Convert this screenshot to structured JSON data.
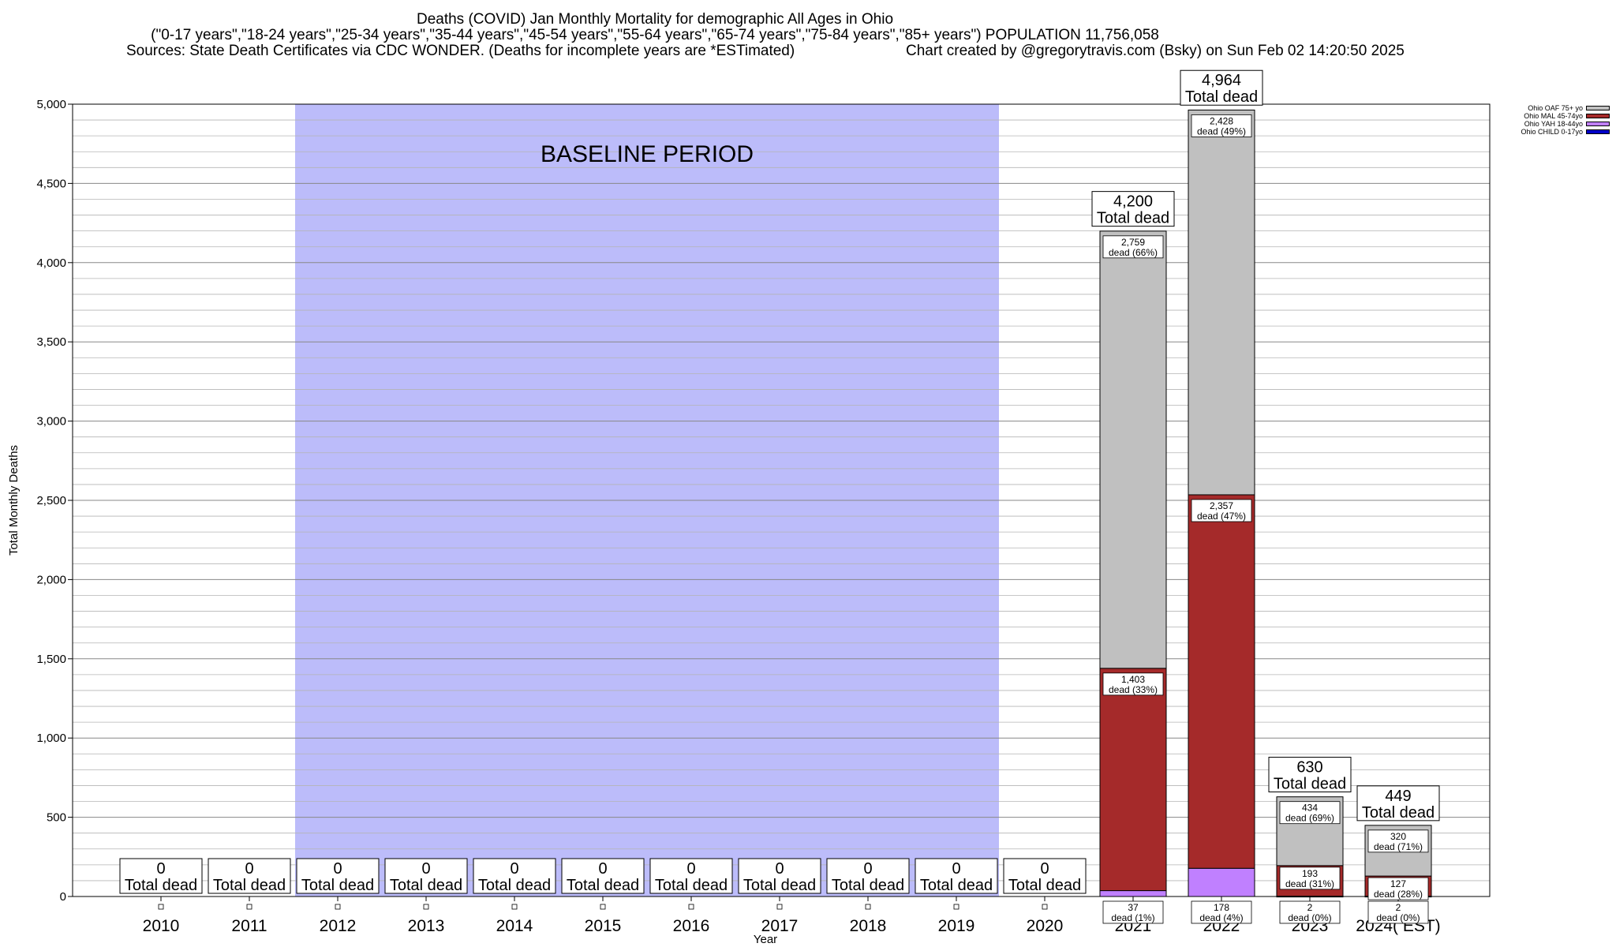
{
  "header": {
    "title_line1": "Deaths (COVID) Jan Monthly Mortality for demographic All Ages in Ohio",
    "title_line2": "(\"0-17 years\",\"18-24 years\",\"25-34 years\",\"35-44 years\",\"45-54 years\",\"55-64 years\",\"65-74 years\",\"75-84 years\",\"85+ years\") POPULATION 11,756,058",
    "sources": "Sources: State Death Certificates via CDC WONDER. (Deaths for incomplete years are *ESTimated)",
    "credit": "Chart created by @gregorytravis.com (Bsky) on Sun Feb 02 14:20:50 2025"
  },
  "chart_data": {
    "type": "bar",
    "stacked": true,
    "title": "Deaths (COVID) Jan Monthly Mortality for demographic All Ages in Ohio",
    "xlabel": "Year",
    "ylabel": "Total Monthly Deaths",
    "ylim": [
      0,
      5000
    ],
    "yticks": [
      0,
      500,
      1000,
      1500,
      2000,
      2500,
      3000,
      3500,
      4000,
      4500,
      5000
    ],
    "ytick_labels": [
      "0",
      "500",
      "1,000",
      "1,500",
      "2,000",
      "2,500",
      "3,000",
      "3,500",
      "4,000",
      "4,500",
      "5,000"
    ],
    "grid": true,
    "legend_position": "top-right",
    "categories": [
      "2010",
      "2011",
      "2012",
      "2013",
      "2014",
      "2015",
      "2016",
      "2017",
      "2018",
      "2019",
      "2020",
      "2021",
      "2022",
      "2023",
      "2024( EST)"
    ],
    "series": [
      {
        "name": "Ohio CHILD 0-17yo",
        "color": "#0000c8",
        "values": [
          0,
          0,
          0,
          0,
          0,
          0,
          0,
          0,
          0,
          0,
          0,
          0,
          0,
          0,
          0
        ]
      },
      {
        "name": "Ohio YAH 18-44yo",
        "color": "#c080ff",
        "values": [
          0,
          0,
          0,
          0,
          0,
          0,
          0,
          0,
          0,
          0,
          0,
          37,
          178,
          2,
          2
        ]
      },
      {
        "name": "Ohio MAL 45-74yo",
        "color": "#a52a2a",
        "values": [
          0,
          0,
          0,
          0,
          0,
          0,
          0,
          0,
          0,
          0,
          0,
          1403,
          2357,
          193,
          127
        ]
      },
      {
        "name": "Ohio OAF 75+ yo",
        "color": "#c0c0c0",
        "values": [
          0,
          0,
          0,
          0,
          0,
          0,
          0,
          0,
          0,
          0,
          0,
          2759,
          2428,
          434,
          320
        ]
      }
    ],
    "totals": [
      0,
      0,
      0,
      0,
      0,
      0,
      0,
      0,
      0,
      0,
      0,
      4200,
      4964,
      630,
      449
    ],
    "totals_text": [
      "0",
      "0",
      "0",
      "0",
      "0",
      "0",
      "0",
      "0",
      "0",
      "0",
      "0",
      "4,200",
      "4,964",
      "630",
      "449"
    ],
    "total_suffix": "Total dead",
    "segment_labels": [
      {
        "category": "2021",
        "series": "Ohio OAF 75+ yo",
        "value": "2,759",
        "pct": "dead (66%)"
      },
      {
        "category": "2021",
        "series": "Ohio MAL 45-74yo",
        "value": "1,403",
        "pct": "dead (33%)"
      },
      {
        "category": "2021",
        "series": "Ohio YAH 18-44yo",
        "value": "37",
        "pct": "dead (1%)"
      },
      {
        "category": "2022",
        "series": "Ohio OAF 75+ yo",
        "value": "2,428",
        "pct": "dead (49%)"
      },
      {
        "category": "2022",
        "series": "Ohio MAL 45-74yo",
        "value": "2,357",
        "pct": "dead (47%)"
      },
      {
        "category": "2022",
        "series": "Ohio YAH 18-44yo",
        "value": "178",
        "pct": "dead (4%)"
      },
      {
        "category": "2023",
        "series": "Ohio OAF 75+ yo",
        "value": "434",
        "pct": "dead (69%)"
      },
      {
        "category": "2023",
        "series": "Ohio MAL 45-74yo",
        "value": "193",
        "pct": "dead (31%)"
      },
      {
        "category": "2023",
        "series": "Ohio YAH 18-44yo",
        "value": "2",
        "pct": "dead (0%)"
      },
      {
        "category": "2024( EST)",
        "series": "Ohio OAF 75+ yo",
        "value": "320",
        "pct": "dead (71%)"
      },
      {
        "category": "2024( EST)",
        "series": "Ohio MAL 45-74yo",
        "value": "127",
        "pct": "dead (28%)"
      },
      {
        "category": "2024( EST)",
        "series": "Ohio YAH 18-44yo",
        "value": "2",
        "pct": "dead (0%)"
      }
    ],
    "annotations": [
      {
        "text": "BASELINE PERIOD",
        "from": "2012",
        "to": "2019",
        "color": "#bcbcfa"
      }
    ]
  }
}
